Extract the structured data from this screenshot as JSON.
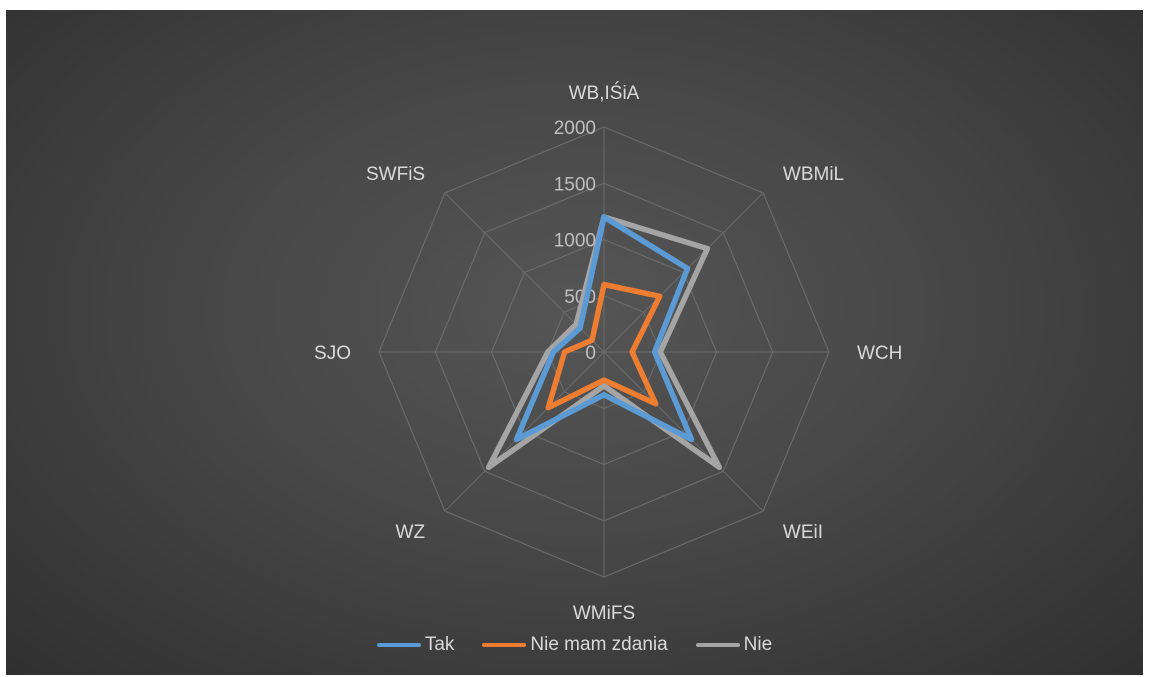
{
  "chart_data": {
    "type": "radar",
    "title": "",
    "categories": [
      "WB,IŚiA",
      "WBMiL",
      "WCH",
      "WEiI",
      "WMiFS",
      "WZ",
      "SJO",
      "SWFiS"
    ],
    "rmin": 0,
    "rmax": 2000,
    "ticks": [
      0,
      500,
      1000,
      1500,
      2000
    ],
    "tick_labels": [
      "0",
      "500",
      "1000",
      "1500",
      "2000"
    ],
    "grid": true,
    "legend_position": "bottom",
    "series": [
      {
        "name": "Tak",
        "color": "#5b9bd5",
        "values": [
          1200,
          1050,
          450,
          1100,
          380,
          1100,
          450,
          300
        ]
      },
      {
        "name": "Nie mam zdania",
        "color": "#ed7d31",
        "values": [
          600,
          700,
          250,
          650,
          250,
          700,
          350,
          150
        ]
      },
      {
        "name": "Nie",
        "color": "#a5a5a5",
        "values": [
          1200,
          1300,
          500,
          1450,
          300,
          1450,
          500,
          350
        ]
      }
    ]
  }
}
